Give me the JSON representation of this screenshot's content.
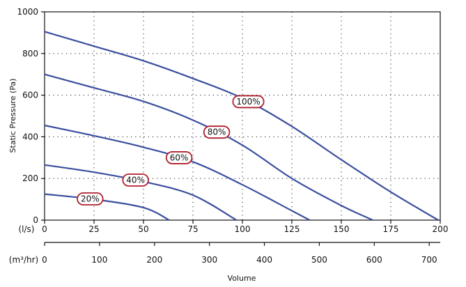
{
  "chart_data": {
    "type": "line",
    "title": "",
    "ylabel": "Static Pressure (Pa)",
    "xlabel": "Volume",
    "x_unit_primary": "(l/s)",
    "x_unit_secondary": "(m³/hr)",
    "xlim": [
      0,
      200
    ],
    "ylim": [
      0,
      1000
    ],
    "x_ticks": [
      "0",
      "25",
      "50",
      "75",
      "100",
      "125",
      "150",
      "175",
      "200"
    ],
    "y_ticks": [
      "0",
      "200",
      "400",
      "600",
      "800",
      "1000"
    ],
    "secondary_x_ticks": [
      {
        "value": 0,
        "label": "0"
      },
      {
        "value": 100,
        "label": "100"
      },
      {
        "value": 200,
        "label": "200"
      },
      {
        "value": 300,
        "label": "300"
      },
      {
        "value": 400,
        "label": "400"
      },
      {
        "value": 500,
        "label": "500"
      },
      {
        "value": 600,
        "label": "600"
      },
      {
        "value": 700,
        "label": "700"
      }
    ],
    "secondary_x_range": [
      0,
      720
    ],
    "grid": true,
    "line_color": "#3a4f9e",
    "label_border_color": "#b01e2e",
    "series": [
      {
        "label": "100%",
        "label_at": 103,
        "x": [
          0,
          25,
          50,
          75,
          100,
          125,
          150,
          175,
          199
        ],
        "y": [
          905,
          835,
          765,
          680,
          585,
          450,
          290,
          135,
          0
        ]
      },
      {
        "label": "80%",
        "label_at": 87,
        "x": [
          0,
          25,
          50,
          75,
          100,
          125,
          150,
          166
        ],
        "y": [
          700,
          635,
          570,
          480,
          360,
          200,
          70,
          0
        ]
      },
      {
        "label": "60%",
        "label_at": 68,
        "x": [
          0,
          25,
          50,
          75,
          100,
          125,
          134
        ],
        "y": [
          455,
          405,
          350,
          280,
          170,
          45,
          0
        ]
      },
      {
        "label": "40%",
        "label_at": 46,
        "x": [
          0,
          25,
          50,
          75,
          97
        ],
        "y": [
          265,
          230,
          185,
          120,
          0
        ]
      },
      {
        "label": "20%",
        "label_at": 23,
        "x": [
          0,
          25,
          50,
          63
        ],
        "y": [
          125,
          100,
          60,
          0
        ]
      }
    ]
  }
}
